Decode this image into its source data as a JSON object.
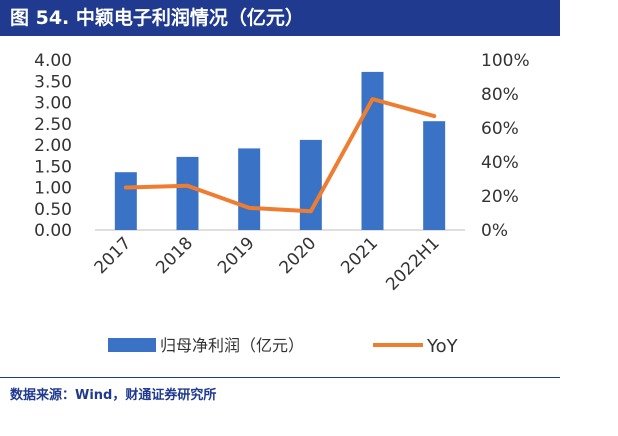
{
  "header": {
    "title": "图 54. 中颖电子利润情况（亿元）"
  },
  "footer": {
    "source": "数据来源：Wind，财通证券研究所"
  },
  "colors": {
    "bar": "#3a73c6",
    "line": "#ef7d31",
    "title_bg": "#1f3a8f"
  },
  "chart_data": {
    "type": "bar",
    "categories": [
      "2017",
      "2018",
      "2019",
      "2020",
      "2021",
      "2022H1"
    ],
    "series": [
      {
        "name": "归母净利润（亿元）",
        "type": "bar",
        "axis": "left",
        "values": [
          1.36,
          1.72,
          1.92,
          2.12,
          3.72,
          2.56
        ]
      },
      {
        "name": "YoY",
        "type": "line",
        "axis": "right",
        "values": [
          0.25,
          0.26,
          0.13,
          0.11,
          0.77,
          0.67
        ]
      }
    ],
    "y_left": {
      "min": 0,
      "max": 4,
      "ticks": [
        "0.00",
        "0.50",
        "1.00",
        "1.50",
        "2.00",
        "2.50",
        "3.00",
        "3.50",
        "4.00"
      ]
    },
    "y_right": {
      "min": 0,
      "max": 1,
      "ticks": [
        "0%",
        "20%",
        "40%",
        "60%",
        "80%",
        "100%"
      ]
    },
    "grid": false,
    "legend_position": "bottom"
  }
}
